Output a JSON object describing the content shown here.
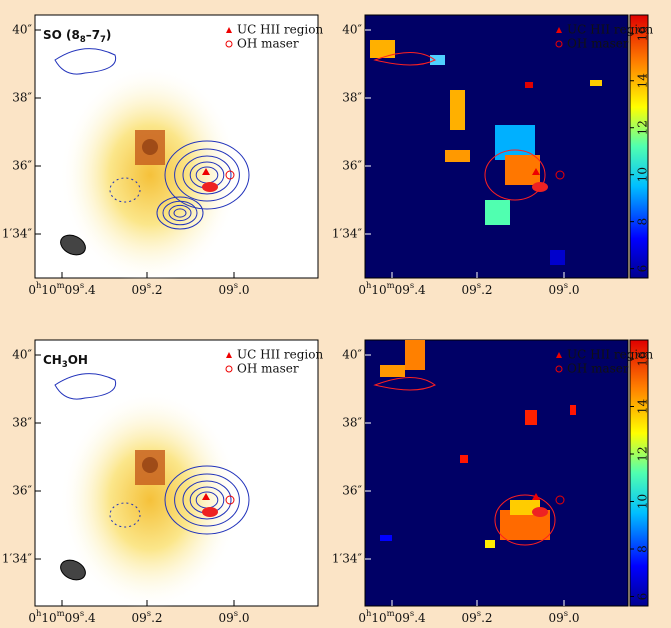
{
  "y_labels": [
    "40″",
    "38″",
    "36″",
    "1′34″"
  ],
  "x_labels": [
    [
      "0",
      "h",
      "10",
      "m",
      "09",
      "s",
      ".4"
    ],
    [
      "09",
      "s",
      ".2"
    ],
    [
      "09",
      "s",
      ".0"
    ]
  ],
  "panels": [
    {
      "title": [
        "SO (8",
        "8",
        "–7",
        "7",
        ")"
      ],
      "legend": [
        "UC HII region",
        "OH maser"
      ]
    },
    {
      "legend": [
        "UC HII region",
        "OH maser"
      ],
      "colorbar": {
        "lim": [
          5.6,
          16.8
        ],
        "ticks": [
          6,
          8,
          10,
          12,
          14,
          16
        ]
      }
    },
    {
      "title": [
        "CH",
        "3",
        "OH"
      ],
      "legend": [
        "UC HII region",
        "OH maser"
      ]
    },
    {
      "legend": [
        "UC HII region",
        "OH maser"
      ],
      "colorbar": {
        "lim": [
          5.6,
          16.8
        ],
        "ticks": [
          6,
          8,
          10,
          12,
          14,
          16
        ]
      }
    }
  ]
}
